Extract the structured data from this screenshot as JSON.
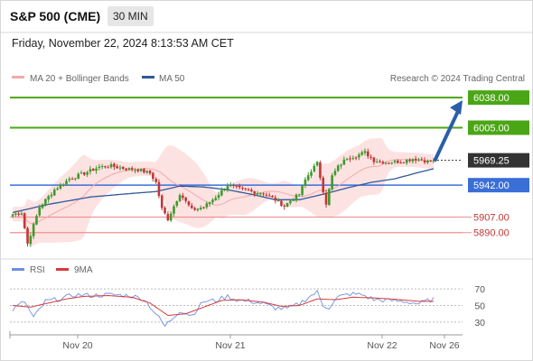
{
  "header": {
    "title": "S&P 500 (CME)",
    "interval": "30 MIN",
    "datetime": "Friday, November 22, 2024 8:13:53 AM CET"
  },
  "legend": {
    "ma20": "MA 20 + Bollinger Bands",
    "ma50": "MA 50",
    "credit": "Research © 2024 Trading Central",
    "rsi": "RSI",
    "ma9": "9MA"
  },
  "colors": {
    "resistance": "#4aa615",
    "support_blue": "#3a6fd8",
    "support_red": "#f08f8f",
    "bollinger_fill": "#fde2e2",
    "ma20": "#f4a9a9",
    "ma50": "#30589a",
    "candle_up": "#3d9a2c",
    "candle_down": "#c23737",
    "arrow": "#2b5ea8",
    "rsi_line": "#6e8fe0",
    "rsi_ma": "#d53a3a"
  },
  "chart_data": [
    {
      "type": "candlestick",
      "title": "S&P 500 (CME)",
      "interval": "30 MIN",
      "ylim": [
        5866,
        6050
      ],
      "levels": [
        {
          "value": 6038.0,
          "label": "6038.00",
          "kind": "resistance"
        },
        {
          "value": 6005.0,
          "label": "6005.00",
          "kind": "resistance"
        },
        {
          "value": 5969.25,
          "label": "5969.25",
          "kind": "last"
        },
        {
          "value": 5942.0,
          "label": "5942.00",
          "kind": "pivot"
        },
        {
          "value": 5907.0,
          "label": "5907.00",
          "kind": "support"
        },
        {
          "value": 5890.0,
          "label": "5890.00",
          "kind": "support"
        }
      ],
      "x_ticks": [
        "Nov 20",
        "Nov 21",
        "Nov 22",
        "Nov 26"
      ],
      "forecast_arrow": {
        "from": 5969.25,
        "to": 6038.0
      },
      "close_anchors": [
        [
          0,
          5910
        ],
        [
          3,
          5912
        ],
        [
          5,
          5878
        ],
        [
          9,
          5918
        ],
        [
          14,
          5937
        ],
        [
          19,
          5949
        ],
        [
          24,
          5955
        ],
        [
          29,
          5962
        ],
        [
          33,
          5963
        ],
        [
          38,
          5960
        ],
        [
          42,
          5959
        ],
        [
          46,
          5955
        ],
        [
          48,
          5945
        ],
        [
          50,
          5916
        ],
        [
          52,
          5905
        ],
        [
          56,
          5933
        ],
        [
          60,
          5915
        ],
        [
          64,
          5918
        ],
        [
          68,
          5929
        ],
        [
          72,
          5942
        ],
        [
          76,
          5938
        ],
        [
          80,
          5935
        ],
        [
          84,
          5933
        ],
        [
          88,
          5926
        ],
        [
          91,
          5919
        ],
        [
          93,
          5925
        ],
        [
          96,
          5932
        ],
        [
          98,
          5948
        ],
        [
          100,
          5958
        ],
        [
          102,
          5966
        ],
        [
          104,
          5936
        ],
        [
          105,
          5922
        ],
        [
          107,
          5952
        ],
        [
          109,
          5962
        ],
        [
          112,
          5972
        ],
        [
          115,
          5974
        ],
        [
          118,
          5978
        ],
        [
          121,
          5969
        ],
        [
          125,
          5967
        ],
        [
          130,
          5968
        ],
        [
          134,
          5971
        ],
        [
          137,
          5970
        ],
        [
          139,
          5968
        ],
        [
          141,
          5969.25
        ]
      ],
      "ma50_anchors": [
        [
          0,
          5912
        ],
        [
          12,
          5921
        ],
        [
          26,
          5929
        ],
        [
          40,
          5933
        ],
        [
          48,
          5935
        ],
        [
          56,
          5941
        ],
        [
          64,
          5940
        ],
        [
          72,
          5937
        ],
        [
          80,
          5932
        ],
        [
          88,
          5926
        ],
        [
          96,
          5926
        ],
        [
          104,
          5932
        ],
        [
          112,
          5939
        ],
        [
          120,
          5945
        ],
        [
          128,
          5949
        ],
        [
          136,
          5956
        ],
        [
          141,
          5960
        ]
      ]
    },
    {
      "type": "line",
      "title": "RSI",
      "ylim": [
        20,
        80
      ],
      "y_ticks": [
        70,
        50,
        30
      ],
      "series": [
        {
          "name": "RSI",
          "anchors": [
            [
              0,
              45
            ],
            [
              4,
              55
            ],
            [
              7,
              35
            ],
            [
              11,
              55
            ],
            [
              16,
              58
            ],
            [
              21,
              63
            ],
            [
              27,
              62
            ],
            [
              33,
              63
            ],
            [
              39,
              62
            ],
            [
              44,
              58
            ],
            [
              48,
              40
            ],
            [
              51,
              25
            ],
            [
              56,
              44
            ],
            [
              60,
              38
            ],
            [
              64,
              55
            ],
            [
              68,
              56
            ],
            [
              72,
              61
            ],
            [
              76,
              56
            ],
            [
              80,
              55
            ],
            [
              84,
              52
            ],
            [
              88,
              47
            ],
            [
              92,
              46
            ],
            [
              96,
              52
            ],
            [
              99,
              60
            ],
            [
              102,
              66
            ],
            [
              104,
              50
            ],
            [
              106,
              48
            ],
            [
              109,
              60
            ],
            [
              113,
              64
            ],
            [
              117,
              63
            ],
            [
              121,
              57
            ],
            [
              126,
              56
            ],
            [
              131,
              55
            ],
            [
              136,
              52
            ],
            [
              141,
              58
            ]
          ]
        },
        {
          "name": "9MA",
          "anchors": [
            [
              0,
              50
            ],
            [
              6,
              48
            ],
            [
              12,
              53
            ],
            [
              18,
              58
            ],
            [
              24,
              61
            ],
            [
              32,
              62
            ],
            [
              40,
              60
            ],
            [
              46,
              53
            ],
            [
              52,
              38
            ],
            [
              58,
              40
            ],
            [
              64,
              48
            ],
            [
              70,
              56
            ],
            [
              76,
              57
            ],
            [
              84,
              54
            ],
            [
              90,
              49
            ],
            [
              96,
              50
            ],
            [
              102,
              58
            ],
            [
              108,
              57
            ],
            [
              114,
              60
            ],
            [
              122,
              59
            ],
            [
              130,
              57
            ],
            [
              136,
              55
            ],
            [
              141,
              55
            ]
          ]
        }
      ]
    }
  ]
}
